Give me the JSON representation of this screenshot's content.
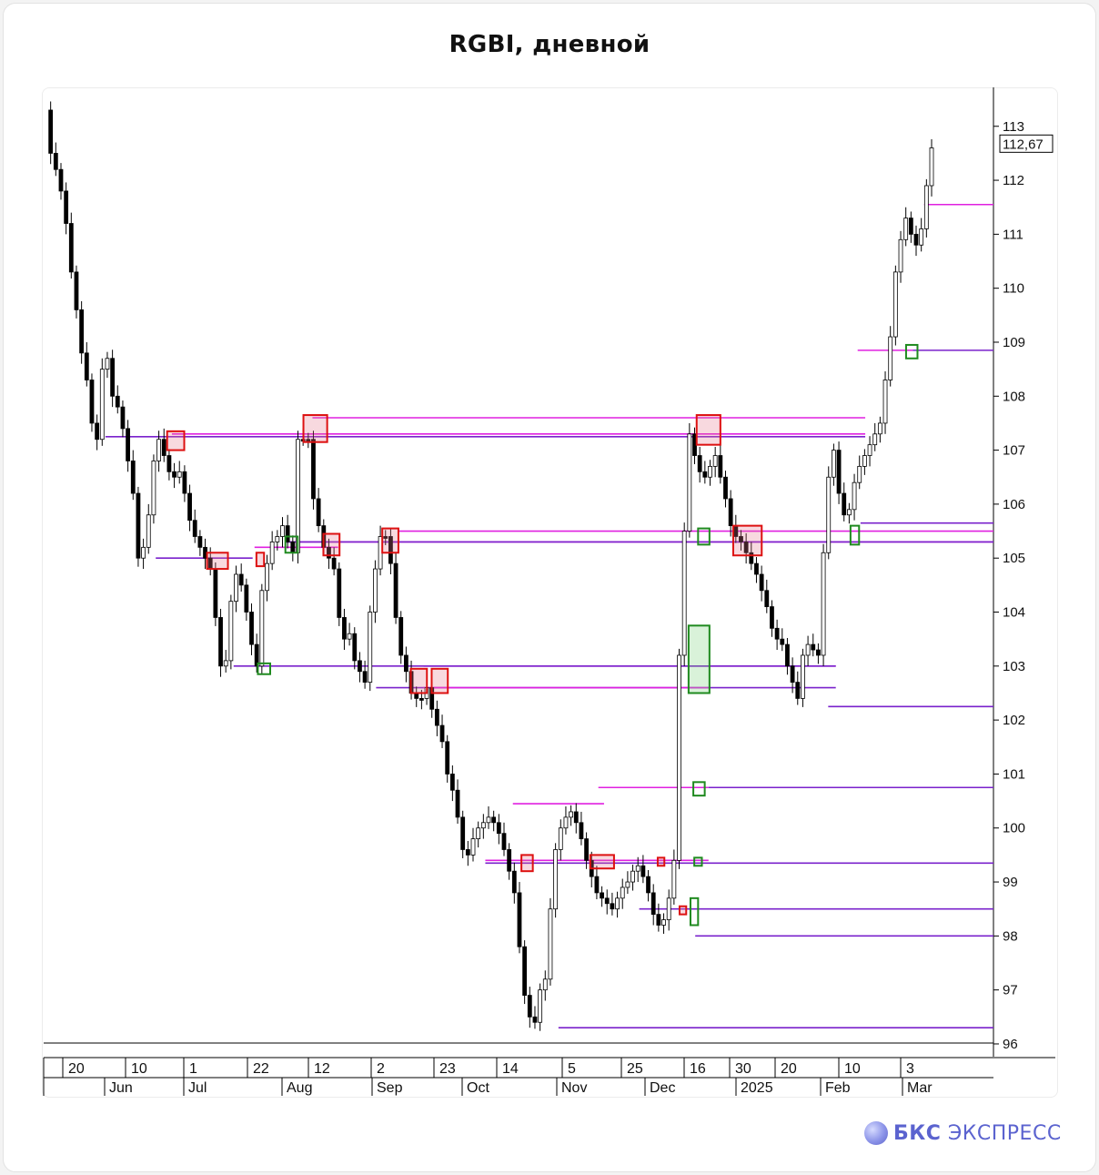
{
  "title": "RGBI, дневной",
  "brand": {
    "name_bold": "БКС",
    "name_light": "ЭКСПРЕСС"
  },
  "colors": {
    "candle": "#000000",
    "magenta": "#e020e0",
    "purple": "#7a22cc",
    "red_box": "#dd1111",
    "green_box": "#1f8a1f"
  },
  "chart_data": {
    "type": "candlestick",
    "title": "RGBI, дневной",
    "ylim": [
      96,
      113
    ],
    "y_ticks": [
      96,
      97,
      98,
      99,
      100,
      101,
      102,
      103,
      104,
      105,
      106,
      107,
      108,
      109,
      110,
      111,
      112,
      113
    ],
    "last_price_label": "112,67",
    "x_day_ticks": [
      "20",
      "10",
      "1",
      "22",
      "12",
      "2",
      "23",
      "14",
      "5",
      "25",
      "16",
      "30",
      "20",
      "10",
      "3"
    ],
    "x_month_ticks": [
      "Jun",
      "Jul",
      "Aug",
      "Sep",
      "Oct",
      "Nov",
      "Dec",
      "2025",
      "Feb",
      "Mar"
    ],
    "close_path": [
      113.3,
      112.5,
      112.2,
      111.8,
      111.2,
      110.3,
      109.6,
      108.8,
      108.3,
      107.5,
      107.2,
      108.5,
      108.7,
      108.0,
      107.8,
      107.4,
      106.8,
      106.2,
      105.0,
      105.2,
      105.8,
      106.8,
      107.2,
      106.9,
      106.6,
      106.5,
      106.6,
      106.2,
      105.7,
      105.4,
      105.2,
      105.0,
      104.8,
      103.9,
      103.0,
      103.1,
      104.2,
      104.7,
      104.5,
      104.0,
      103.4,
      103.0,
      104.4,
      104.9,
      105.3,
      105.4,
      105.6,
      105.3,
      105.1,
      107.2,
      107.2,
      107.2,
      106.1,
      105.6,
      105.2,
      105.0,
      104.8,
      103.9,
      103.5,
      103.6,
      103.1,
      102.9,
      102.7,
      104.0,
      104.8,
      105.4,
      105.4,
      104.9,
      103.9,
      103.2,
      102.9,
      102.5,
      102.4,
      102.4,
      102.6,
      102.2,
      101.9,
      101.6,
      101.0,
      100.7,
      100.2,
      99.6,
      99.5,
      99.8,
      100.0,
      100.1,
      100.2,
      100.1,
      99.9,
      99.6,
      99.2,
      98.8,
      97.8,
      96.9,
      96.5,
      96.4,
      97.0,
      97.2,
      98.5,
      99.6,
      100.0,
      100.2,
      100.3,
      100.1,
      99.8,
      99.4,
      99.1,
      98.8,
      98.7,
      98.6,
      98.5,
      98.7,
      98.9,
      99.0,
      99.2,
      99.3,
      99.1,
      98.8,
      98.4,
      98.2,
      98.3,
      98.7,
      99.4,
      103.2,
      105.5,
      107.3,
      106.9,
      106.6,
      106.5,
      106.7,
      106.9,
      106.5,
      106.1,
      105.6,
      105.4,
      105.3,
      105.1,
      104.9,
      104.7,
      104.4,
      104.1,
      103.7,
      103.5,
      103.4,
      103.0,
      102.7,
      102.4,
      103.2,
      103.4,
      103.3,
      103.2,
      105.1,
      106.5,
      107.0,
      106.2,
      105.8,
      105.9,
      106.4,
      106.7,
      106.9,
      107.1,
      107.3,
      107.5,
      108.3,
      109.1,
      110.3,
      110.9,
      111.3,
      111.0,
      110.8,
      111.1,
      111.9,
      112.6
    ],
    "horizontal_levels": [
      {
        "color": "magenta",
        "value": 107.6,
        "x_from": 0.283,
        "x_to": 0.865
      },
      {
        "color": "magenta",
        "value": 107.3,
        "x_from": 0.135,
        "x_to": 0.865
      },
      {
        "color": "purple",
        "value": 107.25,
        "x_from": 0.065,
        "x_to": 0.865
      },
      {
        "color": "magenta",
        "value": 105.5,
        "x_from": 0.373,
        "x_to": 1.0
      },
      {
        "color": "magenta",
        "value": 105.3,
        "x_from": 0.255,
        "x_to": 1.0
      },
      {
        "color": "purple",
        "value": 105.3,
        "x_from": 0.255,
        "x_to": 1.0
      },
      {
        "color": "magenta",
        "value": 105.2,
        "x_from": 0.222,
        "x_to": 0.31
      },
      {
        "color": "purple",
        "value": 105.0,
        "x_from": 0.118,
        "x_to": 0.22
      },
      {
        "color": "purple",
        "value": 105.65,
        "x_from": 0.86,
        "x_to": 1.0
      },
      {
        "color": "magenta",
        "value": 103.0,
        "x_from": 0.4,
        "x_to": 0.834
      },
      {
        "color": "purple",
        "value": 103.0,
        "x_from": 0.2,
        "x_to": 0.834
      },
      {
        "color": "purple",
        "value": 102.6,
        "x_from": 0.35,
        "x_to": 0.834
      },
      {
        "color": "magenta",
        "value": 102.6,
        "x_from": 0.4,
        "x_to": 0.7
      },
      {
        "color": "purple",
        "value": 102.25,
        "x_from": 0.826,
        "x_to": 1.0
      },
      {
        "color": "magenta",
        "value": 108.85,
        "x_from": 0.857,
        "x_to": 0.915
      },
      {
        "color": "purple",
        "value": 108.85,
        "x_from": 0.915,
        "x_to": 1.0
      },
      {
        "color": "magenta",
        "value": 111.55,
        "x_from": 0.927,
        "x_to": 1.0
      },
      {
        "color": "magenta",
        "value": 100.75,
        "x_from": 0.584,
        "x_to": 0.7
      },
      {
        "color": "purple",
        "value": 100.75,
        "x_from": 0.7,
        "x_to": 1.0
      },
      {
        "color": "magenta",
        "value": 100.45,
        "x_from": 0.494,
        "x_to": 0.59
      },
      {
        "color": "magenta",
        "value": 99.4,
        "x_from": 0.465,
        "x_to": 0.7
      },
      {
        "color": "purple",
        "value": 99.35,
        "x_from": 0.465,
        "x_to": 1.0
      },
      {
        "color": "purple",
        "value": 98.5,
        "x_from": 0.627,
        "x_to": 1.0
      },
      {
        "color": "purple",
        "value": 98.0,
        "x_from": 0.686,
        "x_to": 1.0
      },
      {
        "color": "purple",
        "value": 96.3,
        "x_from": 0.542,
        "x_to": 1.0
      }
    ],
    "boxes": [
      {
        "kind": "red",
        "x": 0.139,
        "y_top": 107.35,
        "y_bot": 107.0,
        "w": 0.018
      },
      {
        "kind": "red",
        "x": 0.286,
        "y_top": 107.65,
        "y_bot": 107.15,
        "w": 0.025
      },
      {
        "kind": "red",
        "x": 0.7,
        "y_top": 107.65,
        "y_bot": 107.1,
        "w": 0.025
      },
      {
        "kind": "red",
        "x": 0.183,
        "y_top": 105.1,
        "y_bot": 104.8,
        "w": 0.022
      },
      {
        "kind": "red",
        "x": 0.228,
        "y_top": 105.1,
        "y_bot": 104.85,
        "w": 0.008
      },
      {
        "kind": "red",
        "x": 0.303,
        "y_top": 105.45,
        "y_bot": 105.05,
        "w": 0.017
      },
      {
        "kind": "red",
        "x": 0.365,
        "y_top": 105.55,
        "y_bot": 105.1,
        "w": 0.017
      },
      {
        "kind": "red",
        "x": 0.741,
        "y_top": 105.6,
        "y_bot": 105.05,
        "w": 0.03
      },
      {
        "kind": "red",
        "x": 0.395,
        "y_top": 102.95,
        "y_bot": 102.5,
        "w": 0.017
      },
      {
        "kind": "red",
        "x": 0.417,
        "y_top": 102.95,
        "y_bot": 102.5,
        "w": 0.017
      },
      {
        "kind": "red",
        "x": 0.509,
        "y_top": 99.5,
        "y_bot": 99.2,
        "w": 0.012
      },
      {
        "kind": "red",
        "x": 0.588,
        "y_top": 99.5,
        "y_bot": 99.25,
        "w": 0.025
      },
      {
        "kind": "red",
        "x": 0.65,
        "y_top": 99.45,
        "y_bot": 99.3,
        "w": 0.007
      },
      {
        "kind": "red",
        "x": 0.673,
        "y_top": 98.55,
        "y_bot": 98.4,
        "w": 0.007
      },
      {
        "kind": "green",
        "x": 0.232,
        "y_top": 103.05,
        "y_bot": 102.85,
        "w": 0.013
      },
      {
        "kind": "green",
        "x": 0.261,
        "y_top": 105.4,
        "y_bot": 105.1,
        "w": 0.013
      },
      {
        "kind": "green",
        "x": 0.69,
        "y_top": 103.75,
        "y_bot": 102.5,
        "w": 0.022,
        "filled": true
      },
      {
        "kind": "green",
        "x": 0.695,
        "y_top": 105.55,
        "y_bot": 105.25,
        "w": 0.012
      },
      {
        "kind": "green",
        "x": 0.69,
        "y_top": 100.85,
        "y_bot": 100.6,
        "w": 0.012
      },
      {
        "kind": "green",
        "x": 0.689,
        "y_top": 99.45,
        "y_bot": 99.3,
        "w": 0.008
      },
      {
        "kind": "green",
        "x": 0.685,
        "y_top": 98.7,
        "y_bot": 98.2,
        "w": 0.008
      },
      {
        "kind": "green",
        "x": 0.854,
        "y_top": 105.6,
        "y_bot": 105.25,
        "w": 0.009
      },
      {
        "kind": "green",
        "x": 0.914,
        "y_top": 108.95,
        "y_bot": 108.7,
        "w": 0.012
      }
    ]
  }
}
